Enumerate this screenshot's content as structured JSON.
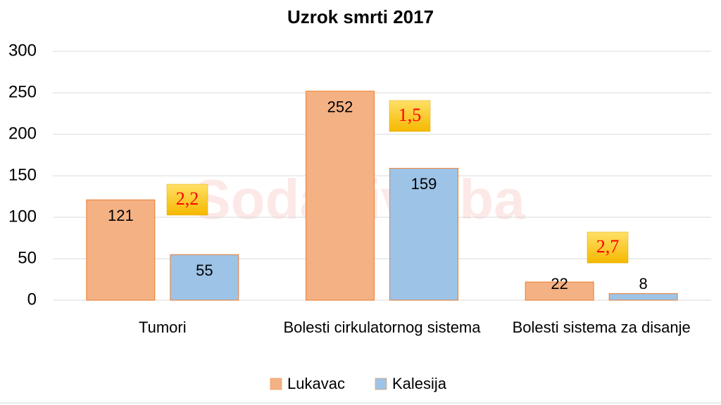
{
  "chart_data": {
    "type": "bar",
    "title": "Uzrok smrti 2017",
    "watermark": "SodaLive.ba",
    "categories": [
      "Tumori",
      "Bolesti cirkulatornog sistema",
      "Bolesti sistema za disanje"
    ],
    "series": [
      {
        "name": "Lukavac",
        "color": "#f4b183",
        "values": [
          121,
          252,
          22
        ]
      },
      {
        "name": "Kalesija",
        "color": "#9dc3e6",
        "values": [
          55,
          159,
          8
        ]
      }
    ],
    "annotations": [
      "2,2",
      "1,5",
      "2,7"
    ],
    "ylim": [
      0,
      300
    ],
    "yticks": [
      0,
      50,
      100,
      150,
      200,
      250,
      300
    ],
    "grid": true,
    "legend": "bottom"
  }
}
